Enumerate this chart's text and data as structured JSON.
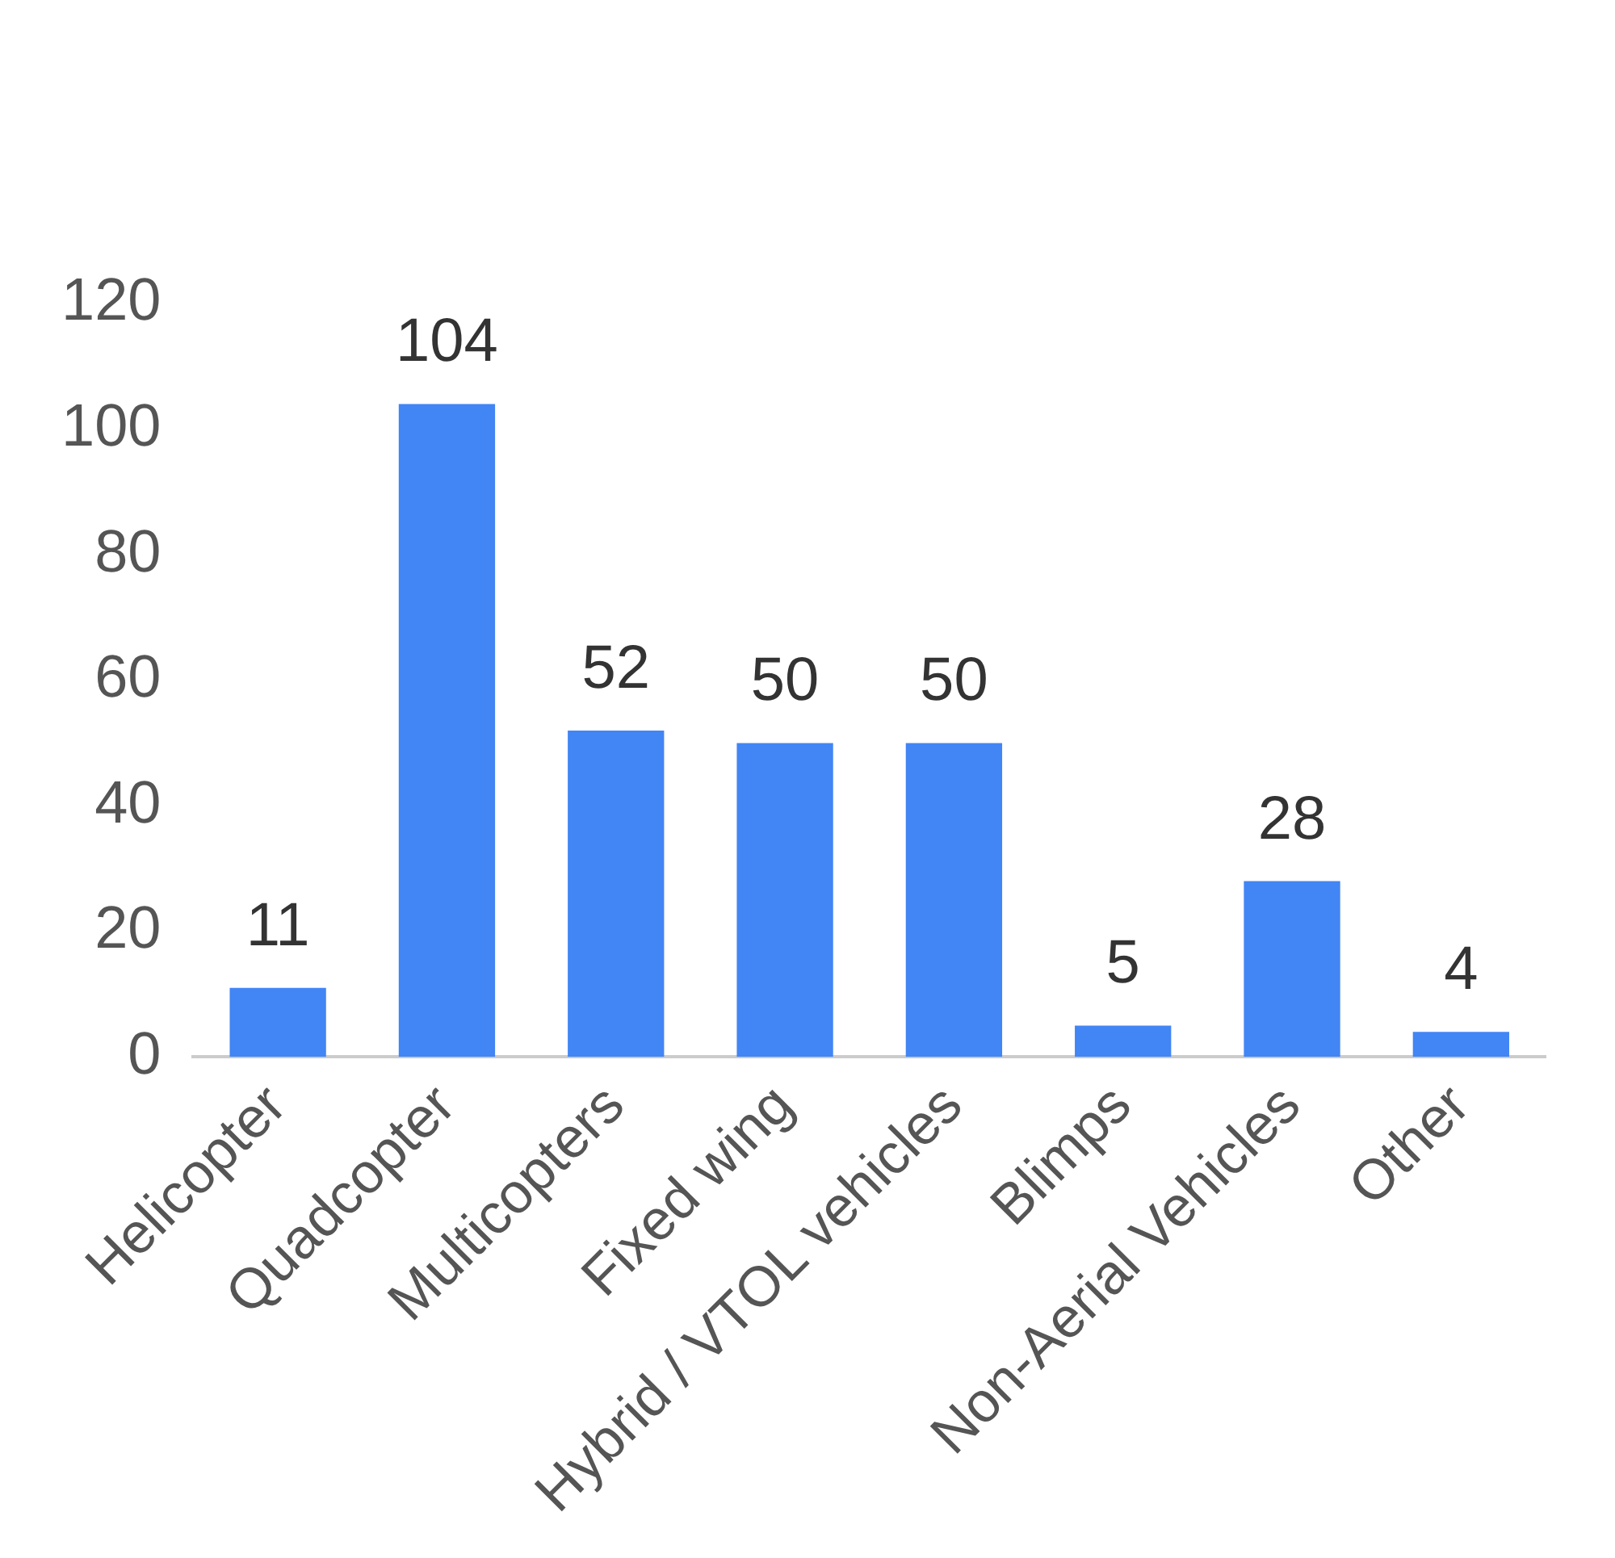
{
  "chart_data": {
    "type": "bar",
    "categories": [
      "Helicopter",
      "Quadcopter",
      "Multicopters",
      "Fixed wing",
      "Hybrid / VTOL vehicles",
      "Blimps",
      "Non-Aerial Vehicles",
      "Other"
    ],
    "values": [
      11,
      104,
      52,
      50,
      50,
      5,
      28,
      4
    ],
    "color": "#4285f4",
    "ylim": [
      0,
      120
    ],
    "yticks": [
      0,
      20,
      40,
      60,
      80,
      100,
      120
    ],
    "grid": false,
    "legend": false,
    "data_labels": true
  }
}
